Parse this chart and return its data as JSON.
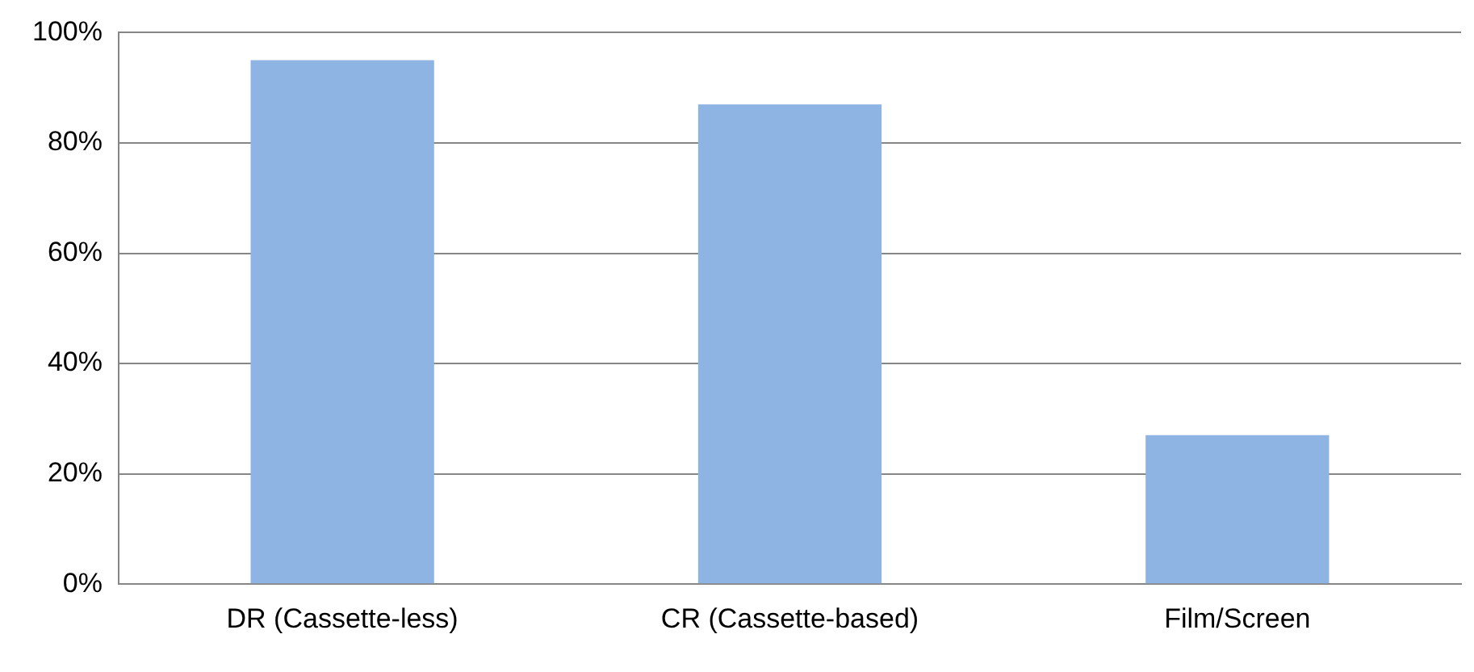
{
  "chart_data": {
    "type": "bar",
    "categories": [
      "DR (Cassette-less)",
      "CR (Cassette-based)",
      "Film/Screen"
    ],
    "values": [
      95,
      87,
      27
    ],
    "color": "#8eb4e3",
    "ylim": [
      0,
      100
    ],
    "yticks": [
      {
        "value": 0,
        "label": "0%"
      },
      {
        "value": 20,
        "label": "20%"
      },
      {
        "value": 40,
        "label": "40%"
      },
      {
        "value": 60,
        "label": "60%"
      },
      {
        "value": 80,
        "label": "80%"
      },
      {
        "value": 100,
        "label": "100%"
      }
    ],
    "grid": "y"
  }
}
